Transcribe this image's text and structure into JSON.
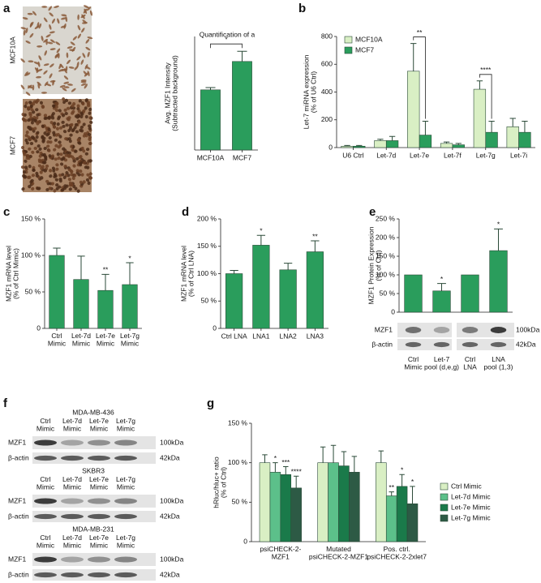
{
  "images": {
    "micrographs": [
      "MCF10A",
      "MCF7"
    ],
    "panel_a": "a",
    "panel_f": "f",
    "blots": [
      {
        "title": "MDA-MB-436",
        "lanes": [
          "Ctrl\nMimic",
          "Let-7d\nMimic",
          "Let-7e\nMimic",
          "Let-7g\nMimic"
        ],
        "rows": [
          "MZF1",
          "β-actin"
        ],
        "sizes": [
          "100kDa",
          "42kDa"
        ]
      },
      {
        "title": "SKBR3",
        "lanes": [
          "Ctrl\nMimic",
          "Let-7d\nMimic",
          "Let-7e\nMimic",
          "Let-7g\nMimic"
        ],
        "rows": [
          "MZF1",
          "β-actin"
        ],
        "sizes": [
          "100kDa",
          "42kDa"
        ]
      },
      {
        "title": "MDA-MB-231",
        "lanes": [
          "Ctrl\nMimic",
          "Let-7d\nMimic",
          "Let-7e\nMimic",
          "Let-7g\nMimic"
        ],
        "rows": [
          "MZF1",
          "β-actin"
        ],
        "sizes": [
          "100kDa",
          "42kDa"
        ]
      }
    ]
  },
  "chart_data": [
    {
      "type": "bar",
      "title": "Quantification of a",
      "ylabel": "Avg. MZF1 Intensity\n(Subtracted background)",
      "categories": [
        "MCF10A",
        "MCF7"
      ],
      "values": [
        26.5,
        39
      ],
      "errors": [
        1,
        4.5
      ],
      "color": "#2a9d5c",
      "ylim": [
        0,
        50
      ],
      "bracket": "*"
    },
    {
      "type": "bar",
      "panel": "b",
      "ylabel": "Let-7 miRNA expression\n(% of U6 Ctrl)",
      "categories": [
        "U6 Ctrl",
        "Let-7d",
        "Let-7e",
        "Let-7f",
        "Let-7g",
        "Let-7i"
      ],
      "series": [
        {
          "name": "MCF10A",
          "color": "#d9efc4",
          "values": [
            10,
            50,
            550,
            30,
            420,
            150
          ],
          "errors": [
            5,
            10,
            200,
            10,
            60,
            60
          ]
        },
        {
          "name": "MCF7",
          "color": "#2a9d5c",
          "values": [
            10,
            50,
            90,
            20,
            110,
            110
          ],
          "errors": [
            5,
            30,
            100,
            10,
            80,
            80
          ]
        }
      ],
      "ylim": [
        0,
        800
      ],
      "yticks": [
        0,
        200,
        400,
        600,
        800
      ],
      "brackets": [
        {
          "category": "Let-7e",
          "text": "**"
        },
        {
          "category": "Let-7g",
          "text": "****"
        }
      ]
    },
    {
      "type": "bar",
      "panel": "c",
      "ylabel": "MZF1 mRNA level\n(% of Ctrl Mimic)",
      "categories": [
        "Ctrl\nMimic",
        "Let-7d\nMimic",
        "Let-7e\nMimic",
        "Let-7g\nMimic"
      ],
      "values": [
        100,
        67,
        52,
        60
      ],
      "errors": [
        10,
        32,
        22,
        30
      ],
      "significance": [
        null,
        null,
        "**",
        "*"
      ],
      "color": "#2a9d5c",
      "ylim": [
        0,
        150
      ],
      "yticks": [
        0,
        {
          "value": 50,
          "label": "50 %"
        },
        {
          "value": 100,
          "label": "100 %"
        },
        {
          "value": 150,
          "label": "150 %"
        }
      ]
    },
    {
      "type": "bar",
      "panel": "d",
      "ylabel": "MZF1 mRNA level\n(% of Ctrl LNA)",
      "categories": [
        "Ctrl LNA",
        "LNA1",
        "LNA2",
        "LNA3"
      ],
      "values": [
        100,
        152,
        107,
        140
      ],
      "errors": [
        6,
        18,
        12,
        20
      ],
      "significance": [
        null,
        "*",
        null,
        "**"
      ],
      "color": "#2a9d5c",
      "ylim": [
        0,
        200
      ],
      "yticks": [
        0,
        {
          "value": 50,
          "label": "50 %"
        },
        {
          "value": 100,
          "label": "100 %"
        },
        {
          "value": 150,
          "label": "150 %"
        },
        {
          "value": 200,
          "label": "200 %"
        }
      ]
    },
    {
      "type": "bar",
      "panel": "e",
      "ylabel": "MZF1 Protein Expression\n(% of Ctrl)",
      "categories": [
        "Ctrl\nMimic",
        "Let-7\npool (d,e,g)",
        "Ctrl\nLNA",
        "LNA\npool (1,3)"
      ],
      "values": [
        100,
        57,
        100,
        165
      ],
      "errors": [
        null,
        20,
        null,
        58
      ],
      "significance": [
        null,
        "*",
        null,
        "*"
      ],
      "color": "#2a9d5c",
      "ylim": [
        0,
        250
      ],
      "yticks": [
        0,
        {
          "value": 50,
          "label": "50 %"
        },
        {
          "value": 100,
          "label": "100 %"
        },
        {
          "value": 150,
          "label": "150 %"
        },
        {
          "value": 200,
          "label": "200 %"
        },
        {
          "value": 250,
          "label": "250 %"
        }
      ],
      "blot": {
        "rows": [
          "MZF1",
          "β-actin"
        ],
        "sizes": [
          "100kDa",
          "42kDa"
        ]
      }
    },
    {
      "type": "bar",
      "panel": "g",
      "ylabel": "hRluc/hluc+ ratio\n(% of Ctrl)",
      "categories": [
        "psiCHECK-2-\nMZF1",
        "Mutated\npsiCHECK-2-MZF1",
        "Pos. ctrl.\npsiCHECK-2-2xlet7"
      ],
      "series": [
        {
          "name": "Ctrl Mimic",
          "color": "#d9efc4",
          "values": [
            100,
            100,
            100
          ],
          "errors": [
            10,
            20,
            15
          ],
          "significance": [
            null,
            null,
            null
          ]
        },
        {
          "name": "Let-7d Mimic",
          "color": "#5cc08a",
          "values": [
            88,
            100,
            58
          ],
          "errors": [
            12,
            22,
            5
          ],
          "significance": [
            "*",
            null,
            "**"
          ]
        },
        {
          "name": "Let-7e Mimic",
          "color": "#1a7a4a",
          "values": [
            85,
            96,
            70
          ],
          "errors": [
            10,
            18,
            15
          ],
          "significance": [
            "***",
            null,
            "*"
          ]
        },
        {
          "name": "Let-7g Mimic",
          "color": "#2d5a45",
          "values": [
            68,
            88,
            48
          ],
          "errors": [
            15,
            20,
            22
          ],
          "significance": [
            "****",
            null,
            "*"
          ]
        }
      ],
      "ylim": [
        0,
        150
      ],
      "yticks": [
        0,
        {
          "value": 50,
          "label": "50 %"
        },
        {
          "value": 100,
          "label": "100 %"
        },
        {
          "value": 150,
          "label": "150 %"
        }
      ]
    }
  ]
}
